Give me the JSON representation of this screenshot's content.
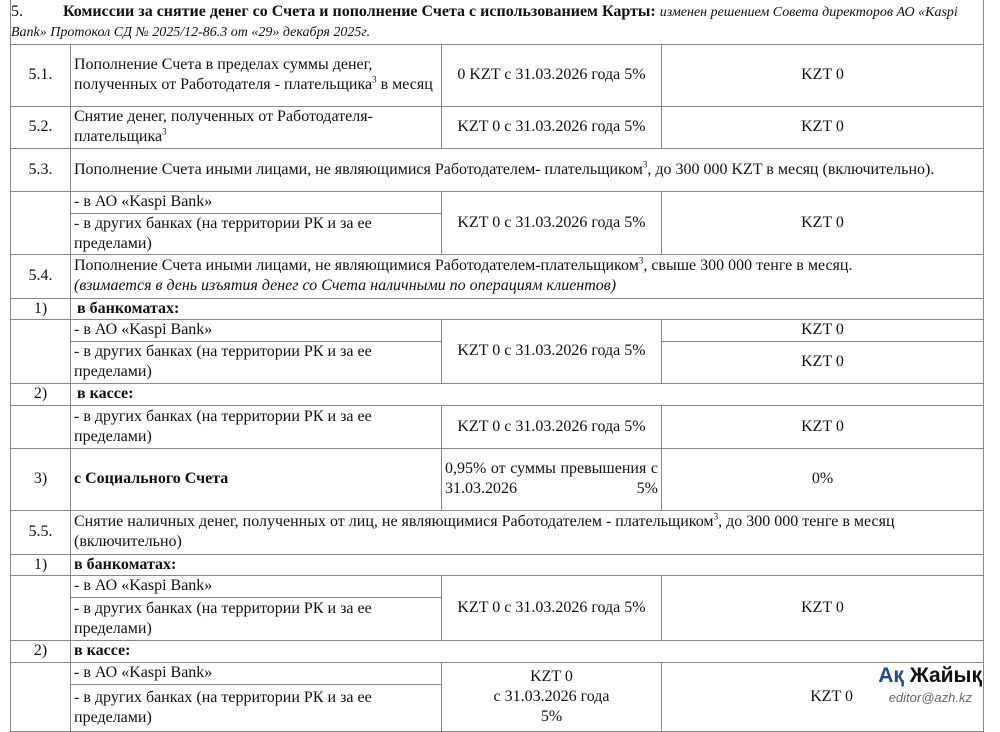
{
  "section": {
    "num": "5.",
    "title": "Комиссии за снятие денег со Счета и пополнение Счета с использованием Карты:",
    "note": "изменен решением Совета директоров АО «Kaspi Bank» Протокол СД № 2025/12-86.3 от «29» декабря 2025г."
  },
  "r51": {
    "num": "5.1.",
    "text": "Пополнение Счета в пределах суммы денег, полученных от Работодателя - плательщика",
    "sup": "3",
    "text2": " в месяц",
    "fee": "0 KZT с 31.03.2026 года 5%",
    "fee2": "KZT 0"
  },
  "r52": {
    "num": "5.2.",
    "text": "Снятие денег, полученных от Работодателя-плательщика",
    "sup": "3",
    "fee": "KZT 0 с 31.03.2026 года 5%",
    "fee2": "KZT 0"
  },
  "r53": {
    "num": "5.3.",
    "text": "Пополнение Счета иными лицами, не являющимися Работодателем- плательщиком",
    "sup": "3",
    "text2": ", до 300 000 KZT в месяц (включительно).",
    "sub1": "- в АО «Kaspi Bank»",
    "sub2": "- в других банках (на территории РК и за ее пределами)",
    "fee": "KZT 0 с 31.03.2026 года 5%",
    "fee2": "KZT 0"
  },
  "r54": {
    "num": "5.4.",
    "text": "Пополнение Счета иными лицами, не являющимися Работодателем-плательщиком",
    "sup": "3",
    "text2": ", свыше 300 000 тенге в месяц.",
    "note": "(взимается в день изъятия денег со Счета наличными по операциям клиентов)",
    "p1": {
      "num": "1)",
      "label": "в банкоматах:",
      "sub1": "- в АО «Kaspi Bank»",
      "sub2": "- в других банках (на территории РК и за ее пределами)",
      "fee": "KZT 0 с 31.03.2026 года 5%",
      "fee2a": "KZT 0",
      "fee2b": "KZT 0"
    },
    "p2": {
      "num": "2)",
      "label": "в кассе:",
      "sub": "- в других банках (на территории РК и за ее пределами)",
      "fee": "KZT 0 с 31.03.2026 года 5%",
      "fee2": "KZT 0"
    },
    "p3": {
      "num": "3)",
      "label": "с Социального Счета",
      "fee": "0,95% от суммы превышения с 31.03.2026 5%",
      "fee2": "0%"
    }
  },
  "r55": {
    "num": "5.5.",
    "text": "Снятие наличных денег, полученных от лиц, не являющимися Работодателем - плательщиком",
    "sup": "3",
    "text2": ", до 300 000 тенге в месяц (включительно)",
    "p1": {
      "num": "1)",
      "label": "в банкоматах:",
      "sub1": "- в АО «Kaspi Bank»",
      "sub2": "- в других банках (на территории РК и за ее пределами)",
      "fee": "KZT 0 с 31.03.2026 года 5%",
      "fee2": "KZT 0"
    },
    "p2": {
      "num": "2)",
      "label": "в кассе:",
      "sub1": "- в АО «Kaspi Bank»",
      "sub2": "- в других банках (на территории РК и за ее пределами)",
      "fee_a": "KZT 0",
      "fee_b": "с 31.03.2026 года",
      "fee_c": "5%",
      "fee2": "KZT 0"
    }
  },
  "watermark": {
    "brand1": "Ақ",
    "brand2": "Жайық",
    "email": "editor@azh.kz"
  }
}
